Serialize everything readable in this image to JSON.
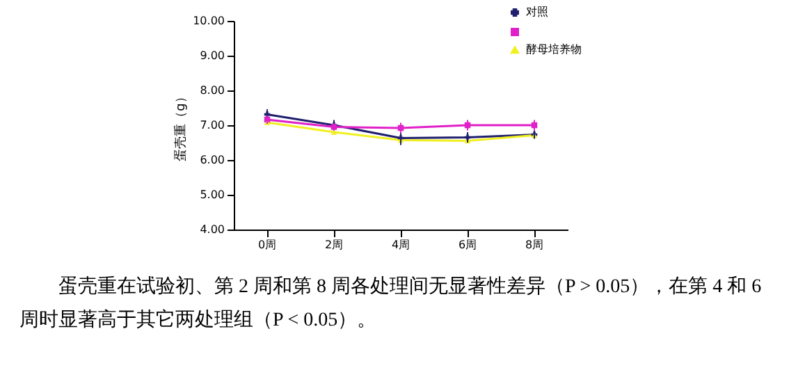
{
  "chart_data": {
    "type": "line",
    "ylabel": "蛋壳重（g）",
    "categories": [
      "0周",
      "2周",
      "4周",
      "6周",
      "8周"
    ],
    "series": [
      {
        "name": "对照",
        "color": "#1f1f6e",
        "marker": "cross",
        "values": [
          7.31,
          7.0,
          6.63,
          6.65,
          6.73
        ],
        "errors": [
          0.15,
          0.15,
          0.2,
          0.15,
          0.12
        ]
      },
      {
        "color": "#e020c8",
        "marker": "square",
        "values": [
          7.16,
          6.95,
          6.92,
          7.0,
          7.0
        ],
        "errors": [
          0.12,
          0.1,
          0.15,
          0.15,
          0.15
        ]
      },
      {
        "name": "酵母培养物",
        "color": "#f0f020",
        "marker": "triangle",
        "values": [
          7.08,
          6.8,
          6.57,
          6.55,
          6.71
        ]
      }
    ],
    "ylim": [
      4,
      10
    ],
    "yticks": [
      {
        "value": 4,
        "label": "4.00"
      },
      {
        "value": 5,
        "label": "5.00"
      },
      {
        "value": 6,
        "label": "6.00"
      },
      {
        "value": 7,
        "label": "7.00"
      },
      {
        "value": 8,
        "label": "8.00"
      },
      {
        "value": 9,
        "label": "9.00"
      },
      {
        "value": 10,
        "label": "10.00"
      }
    ],
    "grid": false,
    "legend": "top right",
    "annotations": [
      "蛋壳重在试验初、第 2 周和第 8 周各处理间无显著性差异（P > 0.05），在第 4 和 6 周时显著高于其它两处理组（P < 0.05）。"
    ]
  }
}
